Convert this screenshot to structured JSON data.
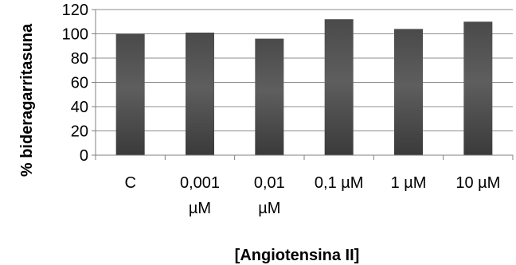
{
  "chart_data": {
    "type": "bar",
    "title": "",
    "xlabel": "[Angiotensina II]",
    "ylabel": "% bideragarritasuna",
    "categories": [
      [
        "C"
      ],
      [
        "0,001",
        "µM"
      ],
      [
        "0,01",
        "µM"
      ],
      [
        "0,1 µM"
      ],
      [
        "1 µM"
      ],
      [
        "10 µM"
      ]
    ],
    "values": [
      100,
      101,
      96,
      112,
      104,
      110
    ],
    "ylim": [
      0,
      120
    ],
    "yticks": [
      0,
      20,
      40,
      60,
      80,
      100,
      120
    ],
    "grid": true,
    "legend": "none",
    "colors": {
      "bar_top": "#4a4a4a",
      "bar_mid": "#5e5e5e",
      "bar_bottom": "#3a3a3a",
      "grid": "#8c8c8c",
      "axis": "#808080"
    }
  }
}
